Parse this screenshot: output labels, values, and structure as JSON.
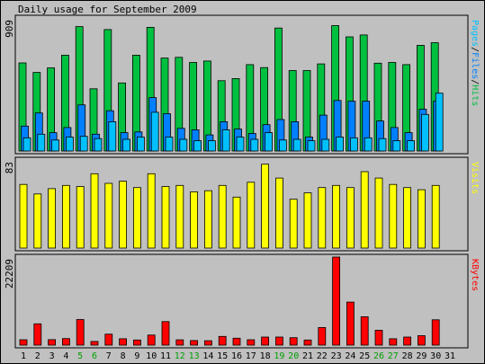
{
  "title": "Daily usage for September 2009",
  "colors": {
    "background": "#c0c0c0",
    "panel": "#c0c0c0",
    "hits": "#00c040",
    "files": "#0080ff",
    "pages": "#00c0ff",
    "visits": "#ffff00",
    "kbytes": "#ff0000",
    "weekend_label": "#00a000",
    "weekday_label": "#000000"
  },
  "legends": {
    "top": {
      "pages": "Pages",
      "sep1": "/",
      "files": "Files",
      "sep2": "/",
      "hits": "Hits"
    },
    "middle": "Visits",
    "bottom": "KBytes"
  },
  "chart_data": [
    {
      "type": "bar",
      "title": "Pages/Files/Hits",
      "ymax_label": "909",
      "ylim": [
        0,
        909
      ],
      "categories": [
        "1",
        "2",
        "3",
        "4",
        "5",
        "6",
        "7",
        "8",
        "9",
        "10",
        "11",
        "12",
        "13",
        "14",
        "15",
        "16",
        "17",
        "18",
        "19",
        "20",
        "21",
        "22",
        "23",
        "24",
        "25",
        "26",
        "27",
        "28",
        "29",
        "30",
        "31"
      ],
      "weekend_days": [
        "5",
        "6",
        "12",
        "13",
        "19",
        "20",
        "26",
        "27"
      ],
      "series": [
        {
          "name": "Hits",
          "values": [
            602,
            537,
            568,
            655,
            850,
            425,
            830,
            465,
            655,
            845,
            635,
            640,
            605,
            615,
            480,
            495,
            590,
            570,
            840,
            550,
            550,
            595,
            857,
            780,
            793,
            600,
            605,
            590,
            722,
            740,
            0
          ]
        },
        {
          "name": "Files",
          "values": [
            170,
            260,
            125,
            160,
            315,
            115,
            275,
            125,
            130,
            365,
            255,
            155,
            145,
            110,
            200,
            150,
            120,
            180,
            215,
            200,
            95,
            245,
            345,
            340,
            340,
            205,
            160,
            125,
            285,
            340,
            0
          ]
        },
        {
          "name": "Pages",
          "values": [
            90,
            115,
            75,
            95,
            100,
            85,
            200,
            80,
            95,
            265,
            95,
            80,
            70,
            70,
            145,
            95,
            80,
            125,
            75,
            80,
            70,
            80,
            95,
            90,
            90,
            85,
            70,
            70,
            250,
            395,
            0
          ]
        }
      ]
    },
    {
      "type": "bar",
      "title": "Visits",
      "ymax_label": "83",
      "ylim": [
        0,
        83
      ],
      "categories": [
        "1",
        "2",
        "3",
        "4",
        "5",
        "6",
        "7",
        "8",
        "9",
        "10",
        "11",
        "12",
        "13",
        "14",
        "15",
        "16",
        "17",
        "18",
        "19",
        "20",
        "21",
        "22",
        "23",
        "24",
        "25",
        "26",
        "27",
        "28",
        "29",
        "30",
        "31"
      ],
      "series": [
        {
          "name": "Visits",
          "values": [
            60,
            51,
            56,
            59,
            58,
            70,
            61,
            63,
            57,
            70,
            58,
            59,
            53,
            54,
            59,
            48,
            62,
            79,
            66,
            46,
            52,
            57,
            59,
            57,
            72,
            66,
            60,
            57,
            55,
            59,
            0
          ]
        }
      ]
    },
    {
      "type": "bar",
      "title": "KBytes",
      "ymax_label": "22209",
      "ylim": [
        0,
        22209
      ],
      "categories": [
        "1",
        "2",
        "3",
        "4",
        "5",
        "6",
        "7",
        "8",
        "9",
        "10",
        "11",
        "12",
        "13",
        "14",
        "15",
        "16",
        "17",
        "18",
        "19",
        "20",
        "21",
        "22",
        "23",
        "24",
        "25",
        "26",
        "27",
        "28",
        "29",
        "30",
        "31"
      ],
      "series": [
        {
          "name": "KBytes",
          "values": [
            1350,
            5370,
            1390,
            1660,
            6460,
            920,
            2770,
            1600,
            1290,
            2530,
            5930,
            1330,
            1150,
            1110,
            2190,
            1740,
            1370,
            2040,
            2040,
            1880,
            1290,
            4440,
            22209,
            10860,
            7170,
            3770,
            1620,
            2040,
            2380,
            6380,
            0
          ]
        }
      ]
    }
  ]
}
